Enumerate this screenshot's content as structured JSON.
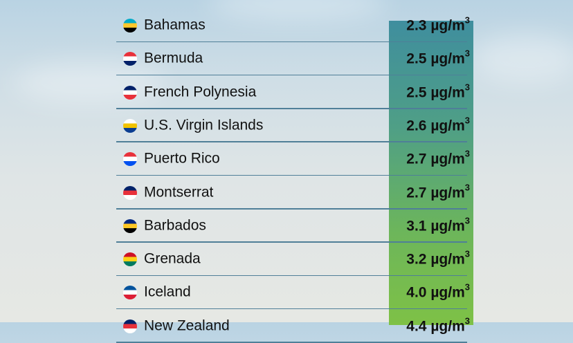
{
  "unit": "µg/m",
  "unit_exp": "3",
  "rows": [
    {
      "country": "Bahamas",
      "value": "2.3",
      "flag": "bahamas-flag",
      "colors": [
        "#00abc9",
        "#ffc72c",
        "#000000"
      ]
    },
    {
      "country": "Bermuda",
      "value": "2.5",
      "flag": "bermuda-flag",
      "colors": [
        "#e8303a",
        "#ffffff",
        "#012169"
      ]
    },
    {
      "country": "French Polynesia",
      "value": "2.5",
      "flag": "french-polynesia-flag",
      "colors": [
        "#012169",
        "#ffffff",
        "#e8303a"
      ]
    },
    {
      "country": "U.S. Virgin Islands",
      "value": "2.6",
      "flag": "us-virgin-islands-flag",
      "colors": [
        "#ffffff",
        "#f2c300",
        "#0a3d91"
      ]
    },
    {
      "country": "Puerto Rico",
      "value": "2.7",
      "flag": "puerto-rico-flag",
      "colors": [
        "#e8303a",
        "#ffffff",
        "#0050f0"
      ]
    },
    {
      "country": "Montserrat",
      "value": "2.7",
      "flag": "montserrat-flag",
      "colors": [
        "#012169",
        "#e8303a",
        "#ffffff"
      ]
    },
    {
      "country": "Barbados",
      "value": "3.1",
      "flag": "barbados-flag",
      "colors": [
        "#00267f",
        "#ffc726",
        "#000000"
      ]
    },
    {
      "country": "Grenada",
      "value": "3.2",
      "flag": "grenada-flag",
      "colors": [
        "#ce1126",
        "#fcd116",
        "#007a5e"
      ]
    },
    {
      "country": "Iceland",
      "value": "4.0",
      "flag": "iceland-flag",
      "colors": [
        "#02529c",
        "#ffffff",
        "#dc1e35"
      ]
    },
    {
      "country": "New Zealand",
      "value": "4.4",
      "flag": "new-zealand-flag",
      "colors": [
        "#012169",
        "#e8303a",
        "#ffffff"
      ]
    }
  ]
}
